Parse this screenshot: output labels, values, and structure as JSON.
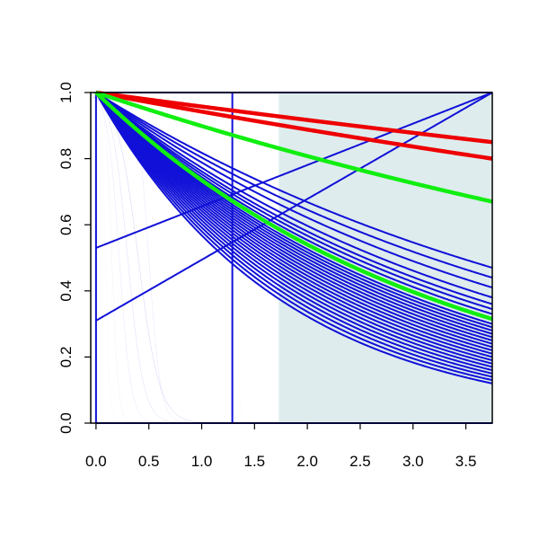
{
  "chart_data": {
    "type": "line",
    "title": "",
    "xlabel": "",
    "ylabel": "",
    "xlim": [
      -0.05,
      3.75
    ],
    "ylim": [
      0.0,
      1.0
    ],
    "x_ticks": [
      "0.0",
      "0.5",
      "1.0",
      "1.5",
      "2.0",
      "2.5",
      "3.0",
      "3.5"
    ],
    "y_ticks": [
      "0.0",
      "0.2",
      "0.4",
      "0.6",
      "0.8",
      "1.0"
    ],
    "shaded_region": {
      "x_start": 1.73,
      "x_end": 3.75,
      "color": "#deeced"
    },
    "colors": {
      "blue": "#1010d8",
      "red": "#ee0000",
      "green": "#11ee11"
    },
    "series": [
      {
        "color": "blue",
        "kind": "power",
        "p": 0.47
      },
      {
        "color": "blue",
        "kind": "power",
        "p": 0.44
      },
      {
        "color": "blue",
        "kind": "power",
        "p": 0.41
      },
      {
        "color": "blue",
        "kind": "power",
        "p": 0.38
      },
      {
        "color": "blue",
        "kind": "power",
        "p": 0.36
      },
      {
        "color": "blue",
        "kind": "power",
        "p": 0.345
      },
      {
        "color": "blue",
        "kind": "power",
        "p": 0.33
      },
      {
        "color": "blue",
        "kind": "power",
        "p": 0.315
      },
      {
        "color": "blue",
        "kind": "power",
        "p": 0.3
      },
      {
        "color": "blue",
        "kind": "power",
        "p": 0.29
      },
      {
        "color": "blue",
        "kind": "power",
        "p": 0.28
      },
      {
        "color": "blue",
        "kind": "power",
        "p": 0.27
      },
      {
        "color": "blue",
        "kind": "power",
        "p": 0.26
      },
      {
        "color": "blue",
        "kind": "power",
        "p": 0.25
      },
      {
        "color": "blue",
        "kind": "power",
        "p": 0.24
      },
      {
        "color": "blue",
        "kind": "power",
        "p": 0.23
      },
      {
        "color": "blue",
        "kind": "power",
        "p": 0.22
      },
      {
        "color": "blue",
        "kind": "power",
        "p": 0.21
      },
      {
        "color": "blue",
        "kind": "power",
        "p": 0.2
      },
      {
        "color": "blue",
        "kind": "power",
        "p": 0.19
      },
      {
        "color": "blue",
        "kind": "power",
        "p": 0.18
      },
      {
        "color": "blue",
        "kind": "power",
        "p": 0.17
      },
      {
        "color": "blue",
        "kind": "power",
        "p": 0.16
      },
      {
        "color": "blue",
        "kind": "power",
        "p": 0.15
      },
      {
        "color": "blue",
        "kind": "power",
        "p": 0.14
      },
      {
        "color": "blue",
        "kind": "power",
        "p": 0.13
      },
      {
        "color": "blue",
        "kind": "power",
        "p": 0.12
      },
      {
        "color": "blue",
        "kind": "sigmoid",
        "a": 0.09,
        "w": 0.018
      },
      {
        "color": "blue",
        "kind": "sigmoid",
        "a": 0.15,
        "w": 0.03
      },
      {
        "color": "blue",
        "kind": "sigmoid",
        "a": 0.22,
        "w": 0.055
      },
      {
        "color": "blue",
        "kind": "sigmoid",
        "a": 0.3,
        "w": 0.075
      },
      {
        "color": "blue",
        "kind": "sigmoid",
        "a": 0.4,
        "w": 0.1
      },
      {
        "color": "blue",
        "kind": "sigmoid",
        "a": 0.5,
        "w": 0.055
      },
      {
        "color": "blue",
        "kind": "sigmoid",
        "a": 1.33,
        "w": 0.012
      },
      {
        "color": "blue",
        "kind": "sigmoid",
        "a": 1.53,
        "w": 0.008
      },
      {
        "color": "blue",
        "kind": "linear",
        "y0": 0.53,
        "y1": 1.0
      },
      {
        "color": "blue",
        "kind": "linear",
        "y0": 0.31,
        "y1": 1.0
      },
      {
        "color": "blue",
        "kind": "vertical",
        "x": 0.0
      },
      {
        "color": "blue",
        "kind": "vertical",
        "x": 1.29
      },
      {
        "color": "blue",
        "kind": "flat",
        "y": 1.0
      },
      {
        "color": "blue",
        "kind": "flat",
        "y": 0.0
      },
      {
        "color": "red",
        "kind": "power",
        "p": 0.85,
        "w": 4.5
      },
      {
        "color": "red",
        "kind": "power",
        "p": 0.8,
        "w": 4.5
      },
      {
        "color": "green",
        "kind": "power",
        "p": 0.67,
        "w": 4.5
      },
      {
        "color": "green",
        "kind": "power",
        "p": 0.315,
        "w": 4.5
      }
    ]
  }
}
